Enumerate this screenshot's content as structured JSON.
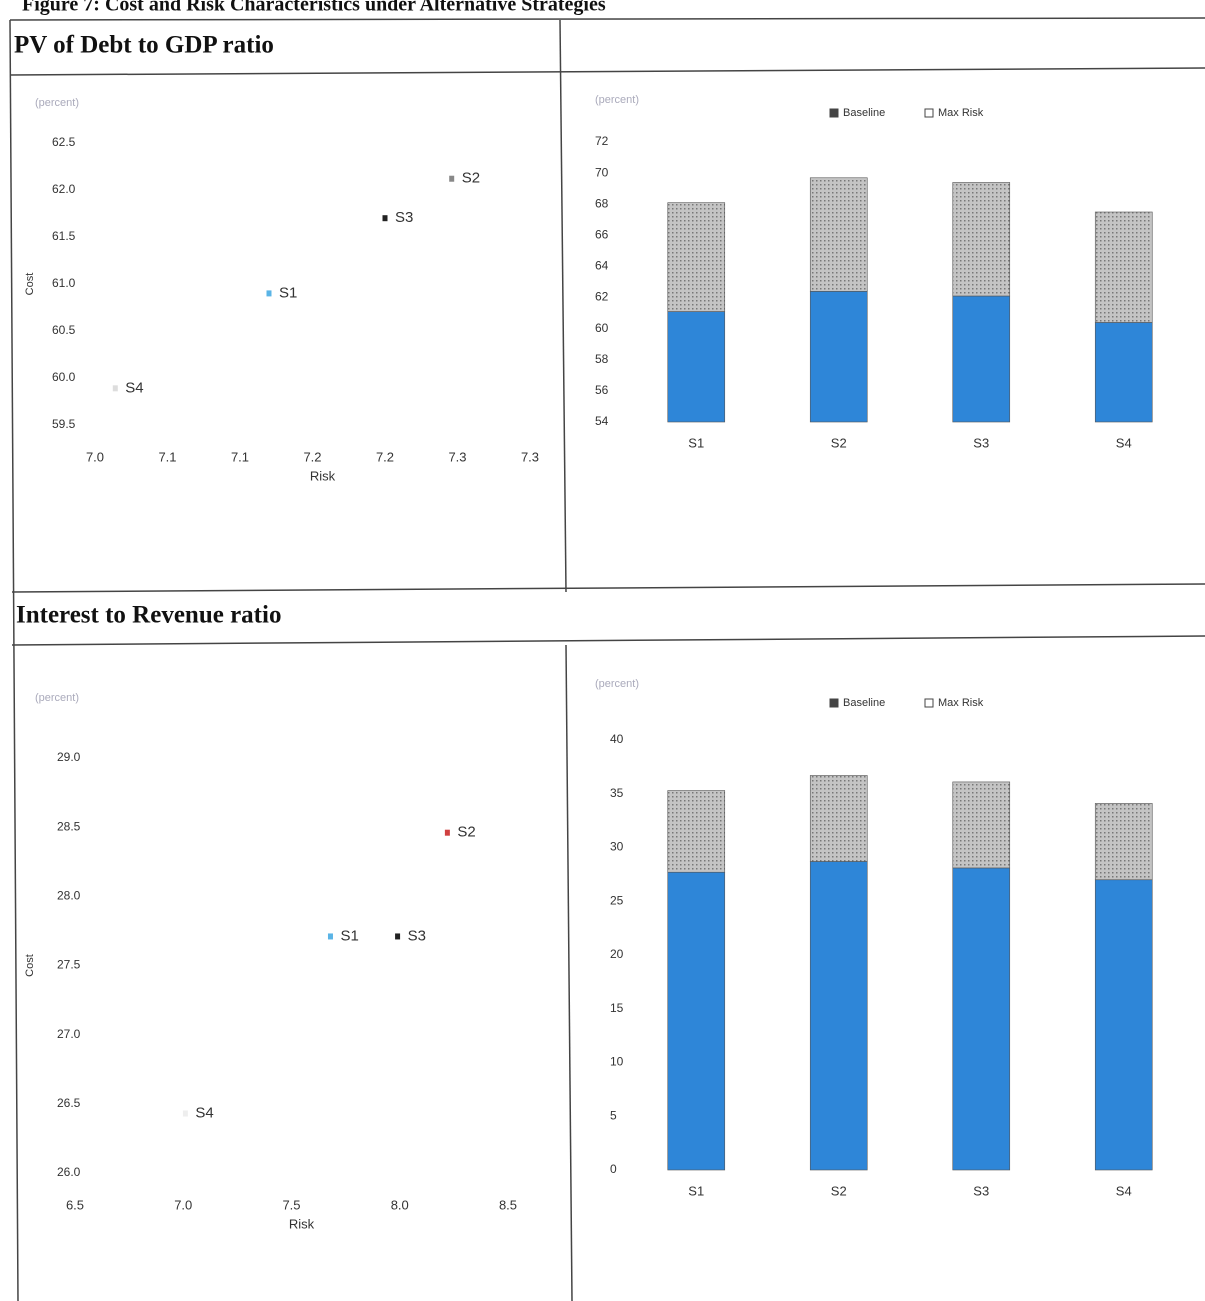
{
  "title": "Figure 7: Cost and Risk Characteristics under Alternative Strategies",
  "sections": [
    "PV of Debt to GDP ratio",
    "Interest to Revenue ratio"
  ],
  "chart_data": [
    {
      "type": "scatter",
      "unit": "(percent)",
      "ylabel": "Cost",
      "xlabel": "Risk",
      "xlim": [
        7.0,
        7.3
      ],
      "xticks": [
        {
          "value": 7.0,
          "label": "7.0"
        },
        {
          "value": 7.05,
          "label": "7.1"
        },
        {
          "value": 7.1,
          "label": "7.1"
        },
        {
          "value": 7.15,
          "label": "7.2"
        },
        {
          "value": 7.2,
          "label": "7.2"
        },
        {
          "value": 7.25,
          "label": "7.3"
        },
        {
          "value": 7.3,
          "label": "7.3"
        }
      ],
      "ylim": [
        59.5,
        62.5
      ],
      "yticks": [
        59.5,
        {
          "value": 60.0,
          "label": "60.0"
        },
        60.5,
        {
          "value": 61.0,
          "label": "61.0"
        },
        61.5,
        {
          "value": 62.0,
          "label": "62.0"
        },
        62.5
      ],
      "series": [
        {
          "name": "S1",
          "color": "#5ab4e6",
          "x": [
            7.12
          ],
          "y": [
            60.9
          ]
        },
        {
          "name": "S2",
          "color": "#888888",
          "x": [
            7.246
          ],
          "y": [
            62.12
          ]
        },
        {
          "name": "S3",
          "color": "#222222",
          "x": [
            7.2
          ],
          "y": [
            61.7
          ]
        },
        {
          "name": "S4",
          "color": "#dddddd",
          "x": [
            7.014
          ],
          "y": [
            59.89
          ]
        }
      ]
    },
    {
      "type": "bar",
      "unit": "(percent)",
      "categories": [
        "S1",
        "S2",
        "S3",
        "S4"
      ],
      "ylim": [
        54,
        72
      ],
      "yticks": [
        54,
        56,
        58,
        60,
        62,
        64,
        66,
        68,
        70,
        72
      ],
      "series": [
        {
          "name": "Baseline",
          "color": "#2e86d8",
          "values": [
            61.1,
            62.4,
            62.1,
            60.4
          ]
        },
        {
          "name": "Max Risk",
          "color": "#b5b5b5",
          "values": [
            7.0,
            7.3,
            7.3,
            7.1
          ]
        }
      ]
    },
    {
      "type": "scatter",
      "unit": "(percent)",
      "ylabel": "Cost",
      "xlabel": "Risk",
      "xlim": [
        6.5,
        8.5
      ],
      "xticks": [
        6.5,
        {
          "value": 7.0,
          "label": "7.0"
        },
        7.5,
        {
          "value": 8.0,
          "label": "8.0"
        },
        8.5
      ],
      "ylim": [
        26.0,
        29.0
      ],
      "yticks": [
        {
          "value": 26.0,
          "label": "26.0"
        },
        26.5,
        {
          "value": 27.0,
          "label": "27.0"
        },
        27.5,
        {
          "value": 28.0,
          "label": "28.0"
        },
        28.5,
        {
          "value": 29.0,
          "label": "29.0"
        }
      ],
      "series": [
        {
          "name": "S1",
          "color": "#5ab4e6",
          "x": [
            7.68
          ],
          "y": [
            27.71
          ]
        },
        {
          "name": "S2",
          "color": "#d04040",
          "x": [
            8.22
          ],
          "y": [
            28.46
          ]
        },
        {
          "name": "S3",
          "color": "#222222",
          "x": [
            7.99
          ],
          "y": [
            27.71
          ]
        },
        {
          "name": "S4",
          "color": "#eeeeee",
          "x": [
            7.01
          ],
          "y": [
            26.43
          ]
        }
      ]
    },
    {
      "type": "bar",
      "unit": "(percent)",
      "categories": [
        "S1",
        "S2",
        "S3",
        "S4"
      ],
      "ylim": [
        0,
        40
      ],
      "yticks": [
        0,
        5,
        10,
        15,
        20,
        25,
        30,
        35,
        40
      ],
      "series": [
        {
          "name": "Baseline",
          "color": "#2e86d8",
          "values": [
            27.7,
            28.7,
            28.1,
            27.0
          ]
        },
        {
          "name": "Max Risk",
          "color": "#b5b5b5",
          "values": [
            7.6,
            8.0,
            8.0,
            7.1
          ]
        }
      ]
    }
  ]
}
